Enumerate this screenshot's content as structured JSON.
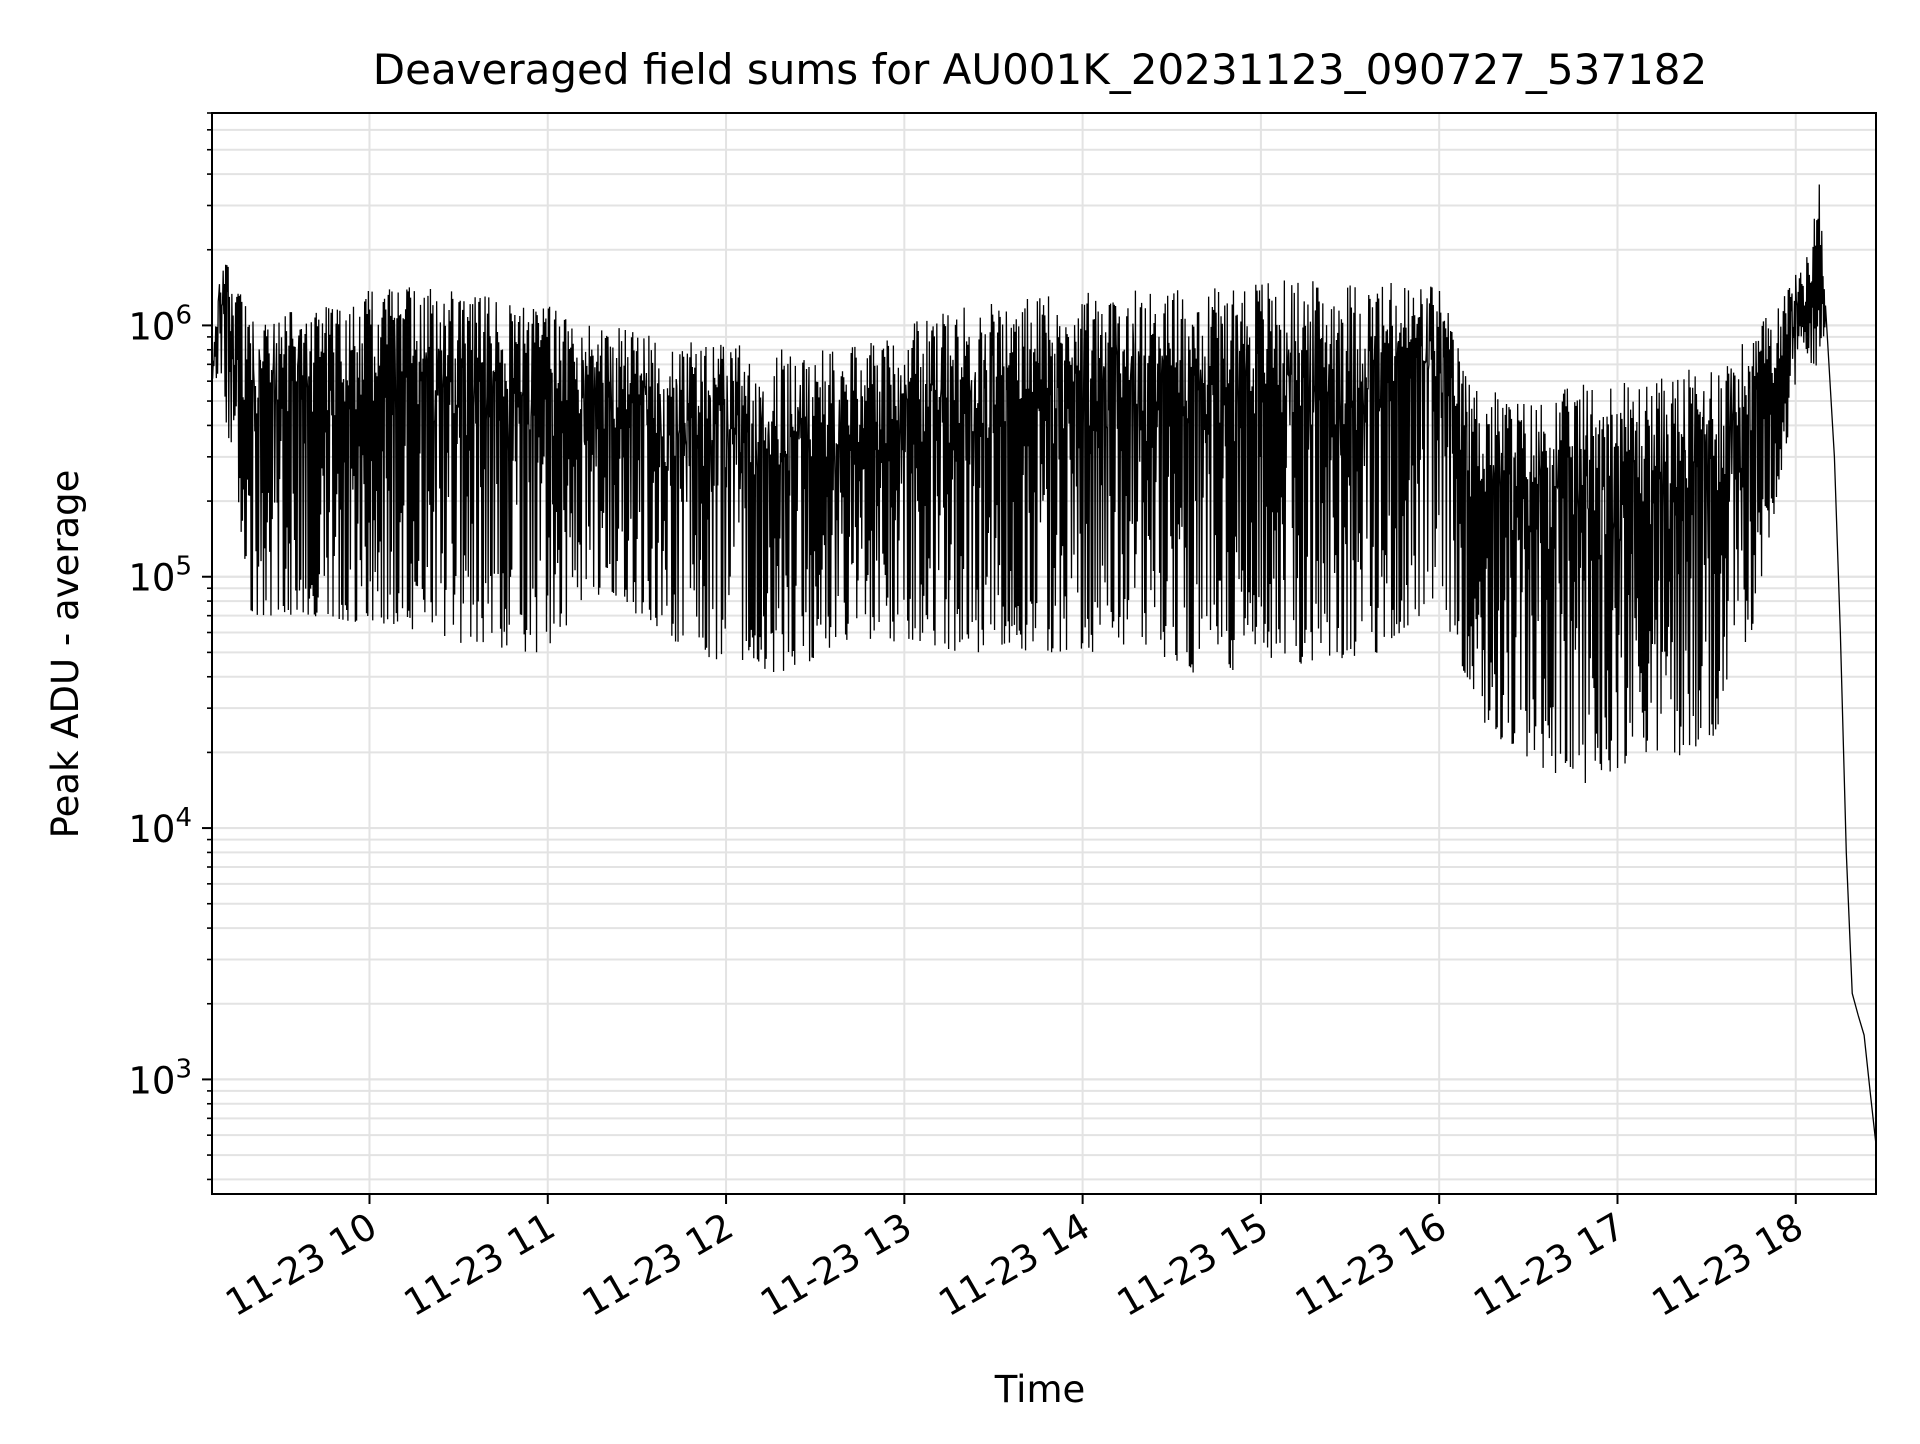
{
  "chart_data": {
    "type": "line",
    "title": "Deaveraged field sums for AU001K_20231123_090727_537182",
    "xlabel": "Time",
    "ylabel": "Peak ADU - average",
    "y_scale": "log",
    "ylim": [
      350,
      7000000
    ],
    "xlim": [
      "2023-11-23 09:07",
      "2023-11-23 18:27"
    ],
    "grid": true,
    "line_color": "#000000",
    "x_ticks": [
      {
        "value": "2023-11-23 10:00",
        "label": "11-23 10"
      },
      {
        "value": "2023-11-23 11:00",
        "label": "11-23 11"
      },
      {
        "value": "2023-11-23 12:00",
        "label": "11-23 12"
      },
      {
        "value": "2023-11-23 13:00",
        "label": "11-23 13"
      },
      {
        "value": "2023-11-23 14:00",
        "label": "11-23 14"
      },
      {
        "value": "2023-11-23 15:00",
        "label": "11-23 15"
      },
      {
        "value": "2023-11-23 16:00",
        "label": "11-23 16"
      },
      {
        "value": "2023-11-23 17:00",
        "label": "11-23 17"
      },
      {
        "value": "2023-11-23 18:00",
        "label": "11-23 18"
      }
    ],
    "y_ticks": [
      {
        "value": 1000,
        "label": "10",
        "exp": "3"
      },
      {
        "value": 10000,
        "label": "10",
        "exp": "4"
      },
      {
        "value": 100000,
        "label": "10",
        "exp": "5"
      },
      {
        "value": 1000000,
        "label": "10",
        "exp": "6"
      }
    ],
    "series": [
      {
        "upper_envelope": [
          [
            "2023-11-23 09:07",
            600000
          ],
          [
            "2023-11-23 09:09",
            1500000
          ],
          [
            "2023-11-23 09:12",
            1900000
          ],
          [
            "2023-11-23 09:20",
            1100000
          ],
          [
            "2023-11-23 09:40",
            1200000
          ],
          [
            "2023-11-23 10:00",
            1400000
          ],
          [
            "2023-11-23 10:20",
            1450000
          ],
          [
            "2023-11-23 10:40",
            1300000
          ],
          [
            "2023-11-23 11:00",
            1200000
          ],
          [
            "2023-11-23 11:20",
            1000000
          ],
          [
            "2023-11-23 11:40",
            900000
          ],
          [
            "2023-11-23 12:00",
            850000
          ],
          [
            "2023-11-23 12:20",
            800000
          ],
          [
            "2023-11-23 12:40",
            800000
          ],
          [
            "2023-11-23 13:00",
            1000000
          ],
          [
            "2023-11-23 13:20",
            1200000
          ],
          [
            "2023-11-23 13:40",
            1300000
          ],
          [
            "2023-11-23 14:00",
            1350000
          ],
          [
            "2023-11-23 14:20",
            1400000
          ],
          [
            "2023-11-23 14:40",
            1500000
          ],
          [
            "2023-11-23 15:00",
            1550000
          ],
          [
            "2023-11-23 15:20",
            1500000
          ],
          [
            "2023-11-23 15:40",
            1500000
          ],
          [
            "2023-11-23 16:00",
            1500000
          ],
          [
            "2023-11-23 16:10",
            600000
          ],
          [
            "2023-11-23 16:30",
            500000
          ],
          [
            "2023-11-23 16:50",
            600000
          ],
          [
            "2023-11-23 17:10",
            600000
          ],
          [
            "2023-11-23 17:30",
            700000
          ],
          [
            "2023-11-23 17:45",
            900000
          ],
          [
            "2023-11-23 18:00",
            1600000
          ],
          [
            "2023-11-23 18:05",
            2000000
          ],
          [
            "2023-11-23 18:08",
            4300000
          ],
          [
            "2023-11-23 18:10",
            1200000
          ]
        ],
        "lower_envelope": [
          [
            "2023-11-23 09:07",
            600000
          ],
          [
            "2023-11-23 09:10",
            600000
          ],
          [
            "2023-11-23 09:20",
            70000
          ],
          [
            "2023-11-23 09:40",
            70000
          ],
          [
            "2023-11-23 10:00",
            65000
          ],
          [
            "2023-11-23 10:20",
            60000
          ],
          [
            "2023-11-23 10:40",
            50000
          ],
          [
            "2023-11-23 11:00",
            50000
          ],
          [
            "2023-11-23 11:20",
            90000
          ],
          [
            "2023-11-23 11:40",
            55000
          ],
          [
            "2023-11-23 12:00",
            45000
          ],
          [
            "2023-11-23 12:20",
            40000
          ],
          [
            "2023-11-23 12:40",
            55000
          ],
          [
            "2023-11-23 13:00",
            55000
          ],
          [
            "2023-11-23 13:20",
            50000
          ],
          [
            "2023-11-23 13:40",
            50000
          ],
          [
            "2023-11-23 14:00",
            50000
          ],
          [
            "2023-11-23 14:20",
            50000
          ],
          [
            "2023-11-23 14:40",
            40000
          ],
          [
            "2023-11-23 15:00",
            45000
          ],
          [
            "2023-11-23 15:20",
            45000
          ],
          [
            "2023-11-23 15:40",
            50000
          ],
          [
            "2023-11-23 16:00",
            80000
          ],
          [
            "2023-11-23 16:15",
            25000
          ],
          [
            "2023-11-23 16:30",
            18000
          ],
          [
            "2023-11-23 16:50",
            15000
          ],
          [
            "2023-11-23 17:10",
            20000
          ],
          [
            "2023-11-23 17:30",
            18000
          ],
          [
            "2023-11-23 17:45",
            60000
          ],
          [
            "2023-11-23 18:00",
            500000
          ],
          [
            "2023-11-23 18:10",
            800000
          ]
        ],
        "tail": [
          [
            "2023-11-23 18:10",
            1200000
          ],
          [
            "2023-11-23 18:13",
            300000
          ],
          [
            "2023-11-23 18:15",
            60000
          ],
          [
            "2023-11-23 18:17",
            8000
          ],
          [
            "2023-11-23 18:19",
            2200
          ],
          [
            "2023-11-23 18:21",
            1800
          ],
          [
            "2023-11-23 18:23",
            1500
          ],
          [
            "2023-11-23 18:25",
            900
          ],
          [
            "2023-11-23 18:27",
            550
          ]
        ]
      }
    ]
  }
}
